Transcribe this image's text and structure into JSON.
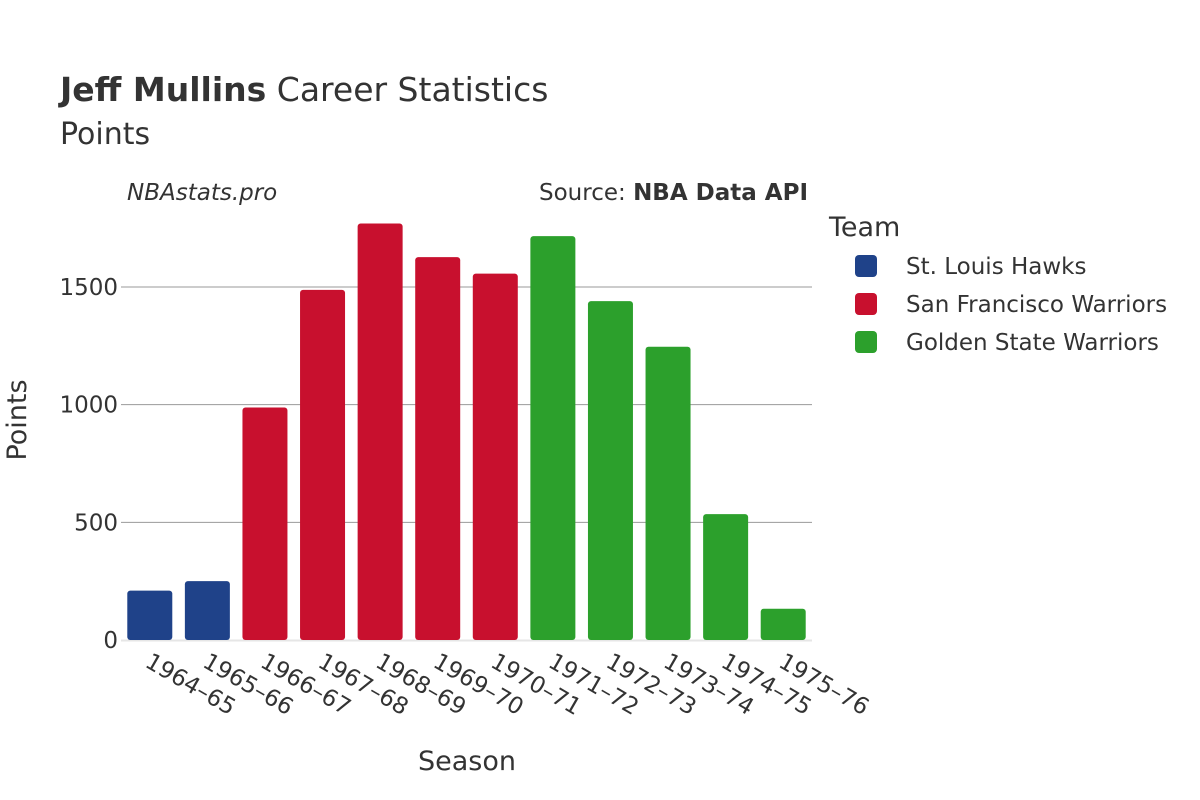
{
  "header": {
    "player_name": "Jeff Mullins",
    "title_rest": " Career Statistics",
    "subtitle": "Points",
    "watermark": "NBAstats.pro",
    "source_prefix": "Source: ",
    "source_name": "NBA Data API"
  },
  "legend": {
    "title": "Team",
    "items": [
      {
        "label": "St. Louis Hawks",
        "color": "#1f4289"
      },
      {
        "label": "San Francisco Warriors",
        "color": "#c8102e"
      },
      {
        "label": "Golden State Warriors",
        "color": "#2ca02c"
      }
    ]
  },
  "chart_data": {
    "type": "bar",
    "xlabel": "Season",
    "ylabel": "Points",
    "ylim": [
      0,
      1800
    ],
    "yticks": [
      0,
      500,
      1000,
      1500
    ],
    "grid": true,
    "legend_position": "right",
    "categories": [
      "1964–65",
      "1965–66",
      "1966–67",
      "1967–68",
      "1968–69",
      "1969–70",
      "1970–71",
      "1971–72",
      "1972–73",
      "1973–74",
      "1974–75",
      "1975–76"
    ],
    "values": [
      210,
      250,
      988,
      1488,
      1770,
      1627,
      1557,
      1716,
      1440,
      1246,
      535,
      133
    ],
    "teams": [
      "St. Louis Hawks",
      "St. Louis Hawks",
      "San Francisco Warriors",
      "San Francisco Warriors",
      "San Francisco Warriors",
      "San Francisco Warriors",
      "San Francisco Warriors",
      "Golden State Warriors",
      "Golden State Warriors",
      "Golden State Warriors",
      "Golden State Warriors",
      "Golden State Warriors"
    ]
  }
}
